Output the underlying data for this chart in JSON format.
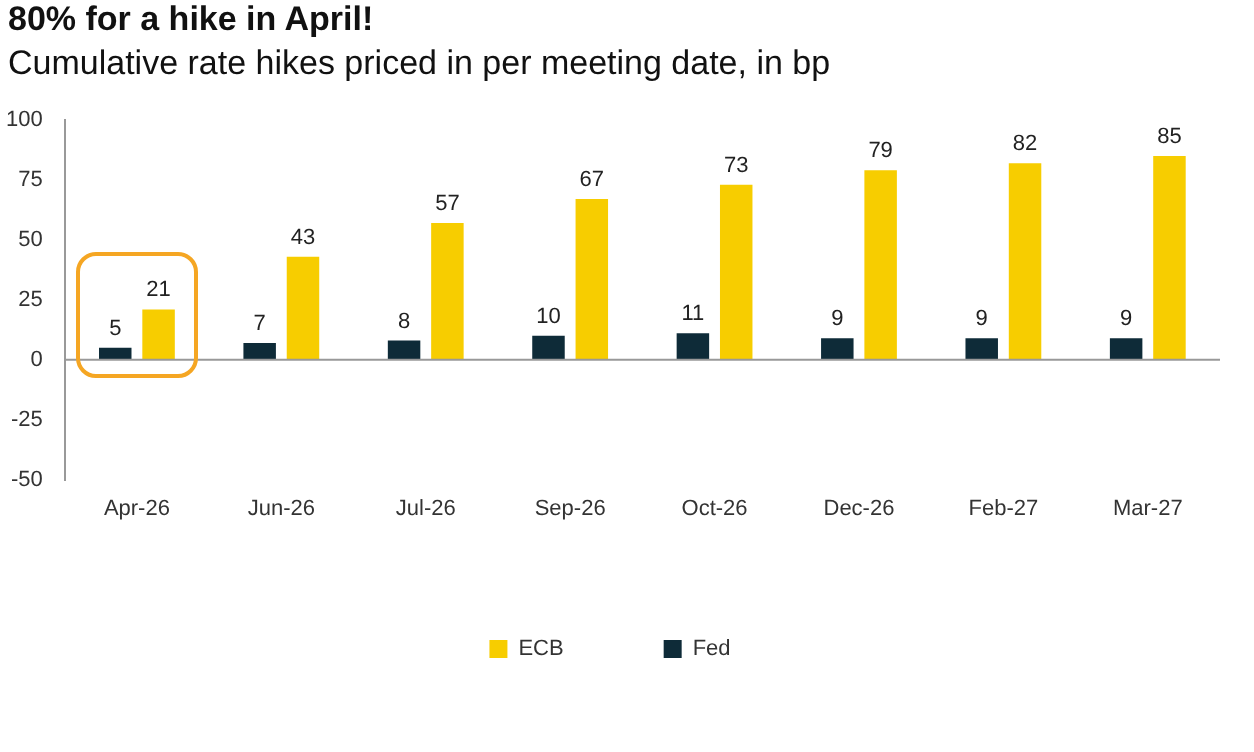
{
  "chart_data": {
    "type": "bar",
    "title": "80% for a hike in April!",
    "subtitle": "Cumulative rate hikes priced in per meeting date, in bp",
    "categories": [
      "Apr-26",
      "Jun-26",
      "Jul-26",
      "Sep-26",
      "Oct-26",
      "Dec-26",
      "Feb-27",
      "Mar-27"
    ],
    "series": [
      {
        "name": "Fed",
        "color": "#0e2b38",
        "values": [
          5,
          7,
          8,
          10,
          11,
          9,
          9,
          9
        ]
      },
      {
        "name": "ECB",
        "color": "#f7cd00",
        "values": [
          21,
          43,
          57,
          67,
          73,
          79,
          82,
          85
        ]
      }
    ],
    "ylim": [
      -50,
      100
    ],
    "yticks": [
      -50,
      -25,
      0,
      25,
      50,
      75,
      100
    ],
    "grid": false,
    "ref_lines": [
      {
        "axis": "y",
        "value": 0,
        "color": "#999999"
      }
    ],
    "legend": "bottom",
    "data_labels": true
  }
}
